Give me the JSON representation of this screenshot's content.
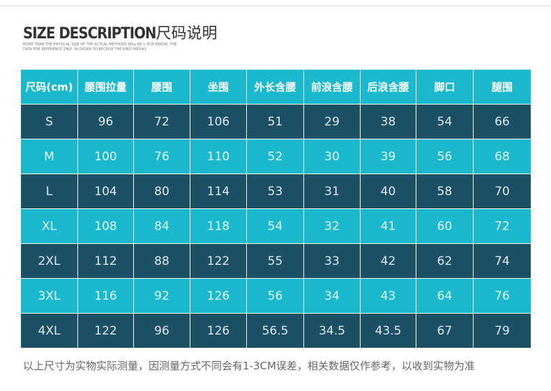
{
  "header": {
    "title_en": "SIZE DESCRIPTION",
    "title_cn": "尺码说明",
    "subtitle": [
      "MORE THAN THE PHYSICAL SIZE OF THE ACTUAL METHODS WILL BE 1-3CM ERROR, THE",
      "DATA FOR REFERENCE ONLY, IN ORDER TO RECEIVE THE KIND PREVAIL"
    ]
  },
  "table": {
    "columns": [
      "尺码(cm)",
      "腰围拉量",
      "腰围",
      "坐围",
      "外长含腰",
      "前浪含腰",
      "后浪含腰",
      "脚口",
      "腿围"
    ],
    "rows": [
      [
        "S",
        96,
        72,
        106,
        51,
        29,
        38,
        54,
        66
      ],
      [
        "M",
        100,
        76,
        110,
        52,
        30,
        39,
        56,
        68
      ],
      [
        "L",
        104,
        80,
        114,
        53,
        31,
        40,
        58,
        70
      ],
      [
        "XL",
        108,
        84,
        118,
        54,
        32,
        41,
        60,
        72
      ],
      [
        "2XL",
        112,
        88,
        122,
        55,
        33,
        42,
        62,
        74
      ],
      [
        "3XL",
        116,
        92,
        126,
        56,
        34,
        43,
        64,
        76
      ],
      [
        "4XL",
        122,
        96,
        126,
        56.5,
        34.5,
        43.5,
        67,
        79
      ]
    ]
  },
  "footer": "以上尺寸为实物实际测量，因测量方式不同会有1-3CM误差，相关数据仅作参考，以收到实物为准"
}
